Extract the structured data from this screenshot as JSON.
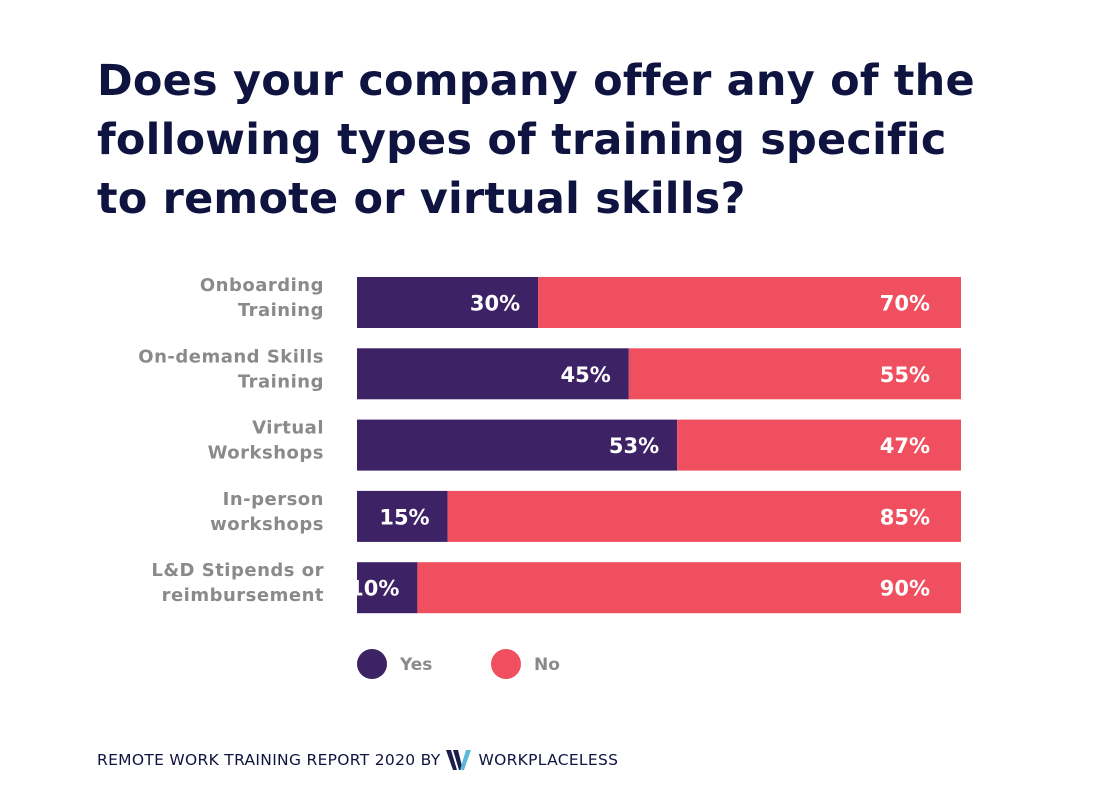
{
  "chart_data": {
    "type": "bar",
    "orientation": "horizontal",
    "stacked": true,
    "title": "Does your company offer any of the following types of training specific to remote or virtual skills?",
    "categories": [
      [
        "Onboarding",
        "Training"
      ],
      [
        "On-demand Skills",
        "Training"
      ],
      [
        "Virtual",
        "Workshops"
      ],
      [
        "In-person",
        "workshops"
      ],
      [
        "L&D Stipends or",
        "reimbursement"
      ]
    ],
    "series": [
      {
        "name": "Yes",
        "color": "#3d2266",
        "values": [
          30,
          45,
          53,
          15,
          10
        ]
      },
      {
        "name": "No",
        "color": "#ef4f5f",
        "values": [
          70,
          55,
          47,
          85,
          90
        ]
      }
    ],
    "value_format": "{v}%",
    "xlim": [
      0,
      100
    ],
    "grid": false,
    "legend_position": "bottom"
  },
  "footer": {
    "text": "REMOTE WORK TRAINING REPORT 2020 BY",
    "brand": "WORKPLACELESS",
    "logo_colors": [
      "#1a1f4a",
      "#5bb8d8"
    ]
  }
}
